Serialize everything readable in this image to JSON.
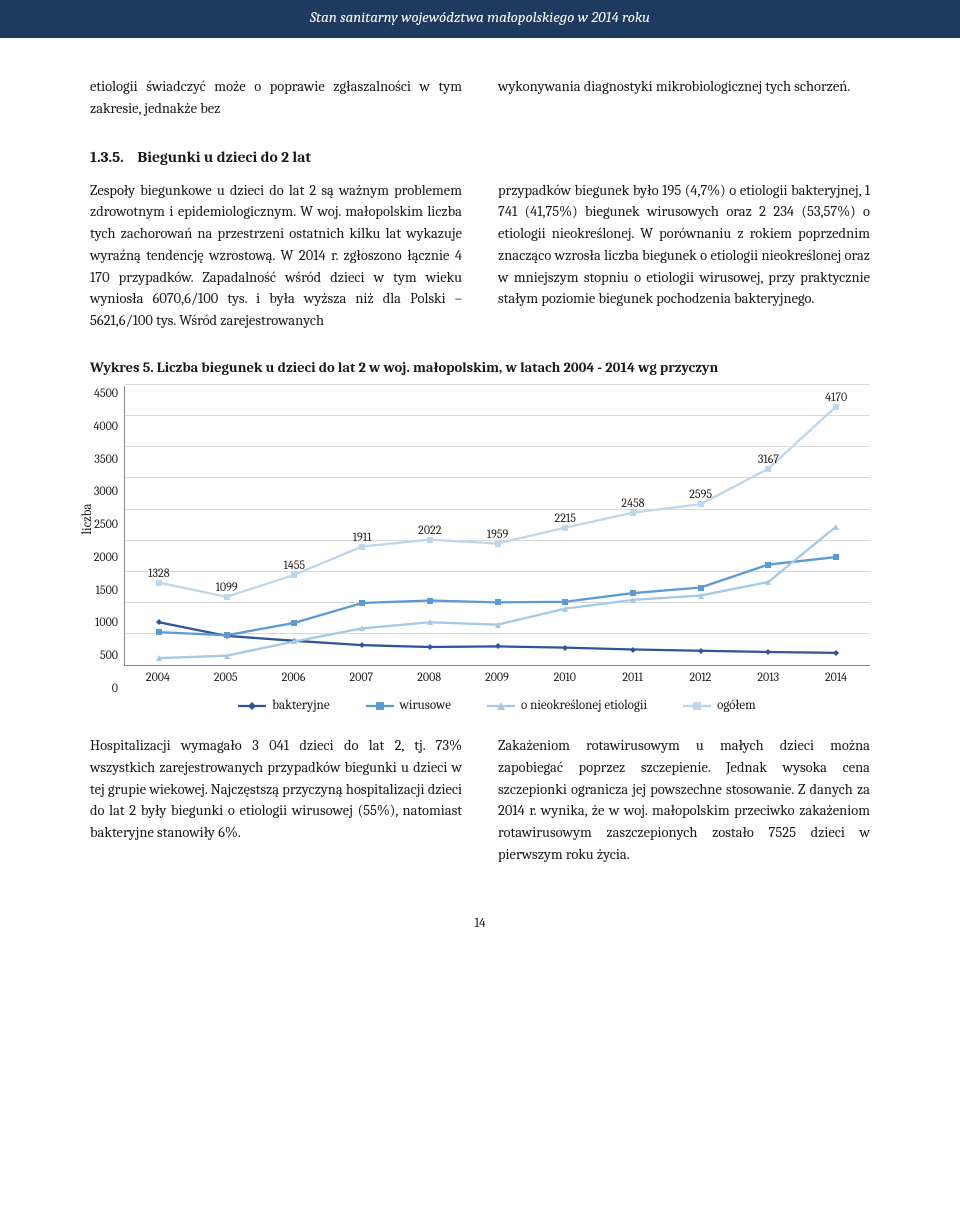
{
  "header": {
    "title": "Stan sanitarny województwa małopolskiego w 2014 roku"
  },
  "intro": {
    "left": "etiologii świadczyć może o poprawie zgłaszalności w tym zakresie, jednakże bez",
    "right": "wykonywania diagnostyki mikrobiologicznej tych schorzeń."
  },
  "section": {
    "number": "1.3.5.",
    "title": "Biegunki u dzieci do 2 lat"
  },
  "body": {
    "left": "Zespoły biegunkowe u dzieci do lat 2 są ważnym problemem zdrowotnym i epidemiologicznym. W woj. małopolskim liczba tych zachorowań na przestrzeni ostatnich kilku lat wykazuje wyraźną tendencję wzrostową. W 2014 r. zgłoszono łącznie 4 170 przypadków. Zapadalność wśród dzieci w tym wieku wyniosła 6070,6/100 tys. i była wyższa niż dla Polski – 5621,6/100 tys. Wśród zarejestrowanych",
    "right": "przypadków biegunek było 195 (4,7%) o etiologii bakteryjnej, 1 741 (41,75%) biegunek wirusowych oraz 2 234 (53,57%) o etiologii nieokreślonej. W porównaniu z rokiem poprzednim znacząco wzrosła liczba biegunek o etiologii nieokreślonej oraz w mniejszym stopniu o etiologii wirusowej, przy praktycznie stałym poziomie biegunek pochodzenia bakteryjnego."
  },
  "chart": {
    "title": "Wykres 5. Liczba biegunek u dzieci do lat 2 w woj. małopolskim, w latach 2004 - 2014 wg przyczyn",
    "y_label": "liczba",
    "ylim": [
      0,
      4500
    ],
    "ytick_step": 500,
    "categories": [
      "2004",
      "2005",
      "2006",
      "2007",
      "2008",
      "2009",
      "2010",
      "2011",
      "2012",
      "2013",
      "2014"
    ],
    "series": [
      {
        "name": "bakteryjne",
        "color": "#2f5597",
        "marker": "diamond",
        "values": [
          690,
          470,
          390,
          320,
          290,
          300,
          280,
          250,
          230,
          210,
          195
        ]
      },
      {
        "name": "wirusowe",
        "color": "#5b9bd5",
        "marker": "square",
        "values": [
          530,
          480,
          680,
          1000,
          1040,
          1010,
          1020,
          1160,
          1250,
          1620,
          1741
        ]
      },
      {
        "name": "o nieokreślonej etiologii",
        "color": "#a6c9e6",
        "marker": "triangle",
        "values": [
          110,
          150,
          380,
          590,
          690,
          650,
          910,
          1050,
          1120,
          1340,
          2234
        ]
      },
      {
        "name": "ogółem",
        "color": "#bdd7ee",
        "marker": "square",
        "values": [
          1328,
          1099,
          1455,
          1911,
          2022,
          1959,
          2215,
          2458,
          2595,
          3167,
          4170
        ]
      }
    ],
    "point_labels": [
      {
        "series": 3,
        "index": 0,
        "text": "1328"
      },
      {
        "series": 3,
        "index": 1,
        "text": "1099"
      },
      {
        "series": 3,
        "index": 2,
        "text": "1455"
      },
      {
        "series": 3,
        "index": 3,
        "text": "1911"
      },
      {
        "series": 3,
        "index": 4,
        "text": "2022"
      },
      {
        "series": 3,
        "index": 5,
        "text": "1959"
      },
      {
        "series": 3,
        "index": 6,
        "text": "2215"
      },
      {
        "series": 3,
        "index": 7,
        "text": "2458"
      },
      {
        "series": 3,
        "index": 8,
        "text": "2595"
      },
      {
        "series": 3,
        "index": 9,
        "text": "3167"
      },
      {
        "series": 3,
        "index": 10,
        "text": "4170"
      }
    ],
    "background_color": "#ffffff",
    "grid_color": "#d9d9d9",
    "line_width": 2.3,
    "marker_size": 6
  },
  "footer_cols": {
    "left": "Hospitalizacji wymagało 3 041 dzieci do lat 2, tj. 73% wszystkich zarejestrowanych przypadków biegunki u dzieci w tej grupie wiekowej. Najczęstszą przyczyną hospitalizacji dzieci do lat 2 były biegunki o etiologii wirusowej (55%), natomiast bakteryjne stanowiły 6%.",
    "right": "Zakażeniom rotawirusowym u małych dzieci można zapobiegać poprzez szczepienie. Jednak wysoka cena szczepionki ogranicza jej powszechne stosowanie. Z danych za 2014 r. wynika, że w woj. małopolskim przeciwko zakażeniom rotawirusowym zaszczepionych zostało 7525 dzieci w pierwszym roku życia."
  },
  "page_number": "14"
}
